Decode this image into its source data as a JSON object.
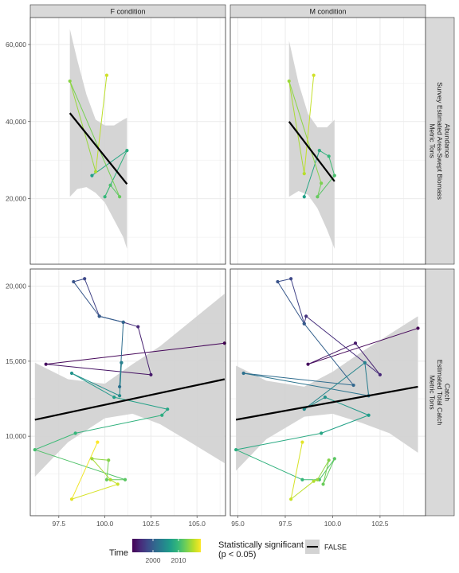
{
  "colors": {
    "panel_bg": "#ffffff",
    "grid": "#ebebeb",
    "border": "#333333",
    "strip_bg": "#d9d9d9",
    "ribbon": "#d3d3d3",
    "fit_line": "#000000",
    "viridis": [
      "#440154",
      "#482878",
      "#3e4989",
      "#31688e",
      "#26828e",
      "#1f9e89",
      "#35b779",
      "#6ece58",
      "#b5de2b",
      "#fde725"
    ]
  },
  "chart_data": [
    {
      "type": "scatter",
      "facet_col": "F condition",
      "facet_row": "Abundance\nSurvey Estimated Area-Swept Biomass\nMetric Tons",
      "x_ticks": [
        97.5,
        100.0,
        102.5,
        105.0
      ],
      "y_ticks": [
        "20,000",
        "40,000",
        "60,000"
      ],
      "xlim": [
        95.95,
        106.55
      ],
      "ylim": [
        3000,
        67000
      ],
      "points": [
        {
          "x": 99.3,
          "y": 26000,
          "t": 0.56
        },
        {
          "x": 101.2,
          "y": 32500,
          "t": 0.62
        },
        {
          "x": 100.0,
          "y": 20500,
          "t": 0.66
        },
        {
          "x": 100.3,
          "y": 23500,
          "t": 0.71
        },
        {
          "x": 100.8,
          "y": 20500,
          "t": 0.76
        },
        {
          "x": 98.1,
          "y": 50500,
          "t": 0.82
        },
        {
          "x": 99.5,
          "y": 27000,
          "t": 0.87
        },
        {
          "x": 100.1,
          "y": 52000,
          "t": 0.93
        }
      ],
      "fit": {
        "x": [
          98.1,
          101.2
        ],
        "y": [
          42200,
          23800
        ]
      },
      "band": {
        "x": [
          98.1,
          98.5,
          99.0,
          99.5,
          100.0,
          100.5,
          101.0,
          101.2
        ],
        "lo": [
          20500,
          22500,
          23000,
          21500,
          19000,
          14500,
          10000,
          7000
        ],
        "hi": [
          64000,
          56000,
          47000,
          40500,
          39000,
          39000,
          40500,
          41000
        ]
      }
    },
    {
      "type": "scatter",
      "facet_col": "M condition",
      "facet_row": "Abundance\nSurvey Estimated Area-Swept Biomass\nMetric Tons",
      "x_ticks": [
        95.0,
        97.5,
        100.0,
        102.5
      ],
      "y_ticks": [
        "20,000",
        "40,000",
        "60,000"
      ],
      "xlim": [
        94.6,
        104.9
      ],
      "ylim": [
        3000,
        67000
      ],
      "points": [
        {
          "x": 98.5,
          "y": 20500,
          "t": 0.56
        },
        {
          "x": 99.3,
          "y": 32500,
          "t": 0.62
        },
        {
          "x": 99.8,
          "y": 31000,
          "t": 0.66
        },
        {
          "x": 100.1,
          "y": 26000,
          "t": 0.71
        },
        {
          "x": 99.2,
          "y": 20500,
          "t": 0.76
        },
        {
          "x": 99.4,
          "y": 24000,
          "t": 0.8
        },
        {
          "x": 97.7,
          "y": 50500,
          "t": 0.85
        },
        {
          "x": 98.5,
          "y": 26500,
          "t": 0.89
        },
        {
          "x": 99.0,
          "y": 52000,
          "t": 0.93
        }
      ],
      "fit": {
        "x": [
          97.7,
          100.1
        ],
        "y": [
          40000,
          24500
        ]
      },
      "band": {
        "x": [
          97.7,
          98.2,
          98.7,
          99.2,
          99.7,
          100.1
        ],
        "lo": [
          20500,
          22000,
          21000,
          17500,
          12000,
          7000
        ],
        "hi": [
          61000,
          50000,
          42000,
          38500,
          38500,
          40500
        ]
      }
    },
    {
      "type": "scatter",
      "facet_col": "F condition",
      "facet_row": "Catch\nEstimated Total Catch\nMetric Tons",
      "x_ticks": [
        97.5,
        100.0,
        102.5,
        105.0
      ],
      "y_ticks": [
        "10,000",
        "15,000",
        "20,000"
      ],
      "xlim": [
        95.95,
        106.55
      ],
      "ylim": [
        4700,
        21150
      ],
      "points": [
        {
          "x": 106.5,
          "y": 16200,
          "t": 0.0
        },
        {
          "x": 96.8,
          "y": 14800,
          "t": 0.03
        },
        {
          "x": 102.5,
          "y": 14100,
          "t": 0.07
        },
        {
          "x": 101.8,
          "y": 17300,
          "t": 0.11
        },
        {
          "x": 101.0,
          "y": 17600,
          "t": 0.15
        },
        {
          "x": 99.7,
          "y": 18000,
          "t": 0.18
        },
        {
          "x": 98.9,
          "y": 20500,
          "t": 0.22
        },
        {
          "x": 98.3,
          "y": 20300,
          "t": 0.26
        },
        {
          "x": 99.7,
          "y": 18000,
          "t": 0.29
        },
        {
          "x": 101.0,
          "y": 17600,
          "t": 0.33
        },
        {
          "x": 100.8,
          "y": 13300,
          "t": 0.37
        },
        {
          "x": 100.9,
          "y": 14900,
          "t": 0.4
        },
        {
          "x": 100.9,
          "y": 14900,
          "t": 0.44
        },
        {
          "x": 100.8,
          "y": 12700,
          "t": 0.48
        },
        {
          "x": 98.2,
          "y": 14200,
          "t": 0.51
        },
        {
          "x": 100.5,
          "y": 12600,
          "t": 0.55
        },
        {
          "x": 103.4,
          "y": 11800,
          "t": 0.59
        },
        {
          "x": 103.1,
          "y": 11400,
          "t": 0.62
        },
        {
          "x": 98.4,
          "y": 10200,
          "t": 0.66
        },
        {
          "x": 96.2,
          "y": 9100,
          "t": 0.7
        },
        {
          "x": 101.1,
          "y": 7100,
          "t": 0.74
        },
        {
          "x": 100.1,
          "y": 7100,
          "t": 0.77
        },
        {
          "x": 100.2,
          "y": 8400,
          "t": 0.81
        },
        {
          "x": 99.3,
          "y": 8500,
          "t": 0.85
        },
        {
          "x": 100.3,
          "y": 7100,
          "t": 0.88
        },
        {
          "x": 100.7,
          "y": 6800,
          "t": 0.92
        },
        {
          "x": 98.2,
          "y": 5800,
          "t": 0.96
        },
        {
          "x": 99.6,
          "y": 9600,
          "t": 1.0
        }
      ],
      "fit": {
        "x": [
          96.2,
          106.5
        ],
        "y": [
          11100,
          13800
        ]
      },
      "band": {
        "x": [
          96.2,
          98.0,
          100.0,
          101.5,
          103.0,
          104.5,
          106.5
        ],
        "lo": [
          7300,
          9600,
          11200,
          11500,
          10800,
          9700,
          8200
        ],
        "hi": [
          14900,
          13800,
          13500,
          14800,
          16000,
          17500,
          19500
        ]
      }
    },
    {
      "type": "scatter",
      "facet_col": "M condition",
      "facet_row": "Catch\nEstimated Total Catch\nMetric Tons",
      "x_ticks": [
        95.0,
        97.5,
        100.0,
        102.5
      ],
      "y_ticks": [
        "10,000",
        "15,000",
        "20,000"
      ],
      "xlim": [
        94.6,
        104.9
      ],
      "ylim": [
        4700,
        21150
      ],
      "points": [
        {
          "x": 104.5,
          "y": 17200,
          "t": 0.0
        },
        {
          "x": 98.7,
          "y": 14800,
          "t": 0.03
        },
        {
          "x": 101.2,
          "y": 16200,
          "t": 0.07
        },
        {
          "x": 102.5,
          "y": 14100,
          "t": 0.11
        },
        {
          "x": 98.6,
          "y": 18000,
          "t": 0.15
        },
        {
          "x": 98.5,
          "y": 17500,
          "t": 0.18
        },
        {
          "x": 97.8,
          "y": 20500,
          "t": 0.22
        },
        {
          "x": 97.1,
          "y": 20300,
          "t": 0.26
        },
        {
          "x": 98.5,
          "y": 17500,
          "t": 0.29
        },
        {
          "x": 101.1,
          "y": 13400,
          "t": 0.33
        },
        {
          "x": 95.3,
          "y": 14200,
          "t": 0.37
        },
        {
          "x": 101.9,
          "y": 12700,
          "t": 0.4
        },
        {
          "x": 101.7,
          "y": 14900,
          "t": 0.44
        },
        {
          "x": 98.5,
          "y": 11800,
          "t": 0.48
        },
        {
          "x": 99.6,
          "y": 12600,
          "t": 0.51
        },
        {
          "x": 101.9,
          "y": 11400,
          "t": 0.55
        },
        {
          "x": 99.4,
          "y": 10200,
          "t": 0.59
        },
        {
          "x": 94.9,
          "y": 9100,
          "t": 0.62
        },
        {
          "x": 98.4,
          "y": 7100,
          "t": 0.66
        },
        {
          "x": 99.3,
          "y": 7100,
          "t": 0.7
        },
        {
          "x": 100.1,
          "y": 8500,
          "t": 0.74
        },
        {
          "x": 99.5,
          "y": 6800,
          "t": 0.77
        },
        {
          "x": 99.8,
          "y": 8400,
          "t": 0.81
        },
        {
          "x": 99.2,
          "y": 7100,
          "t": 0.85
        },
        {
          "x": 99.0,
          "y": 7000,
          "t": 0.88
        },
        {
          "x": 97.8,
          "y": 5800,
          "t": 0.92
        },
        {
          "x": 98.4,
          "y": 9600,
          "t": 0.96
        }
      ],
      "fit": {
        "x": [
          94.9,
          104.5
        ],
        "y": [
          11100,
          13300
        ]
      },
      "band": {
        "x": [
          94.9,
          96.5,
          98.5,
          100.0,
          101.5,
          103.0,
          104.5
        ],
        "lo": [
          7700,
          9800,
          11300,
          11500,
          10900,
          10200,
          8900
        ],
        "hi": [
          14700,
          13700,
          13300,
          14300,
          15600,
          16800,
          18000
        ]
      }
    }
  ],
  "legend": {
    "time_title": "Time",
    "time_ticks": [
      "2000",
      "2010"
    ],
    "sig_title_line1": "Statistically significant",
    "sig_title_line2": "(p < 0.05)",
    "sig_label": "FALSE"
  }
}
